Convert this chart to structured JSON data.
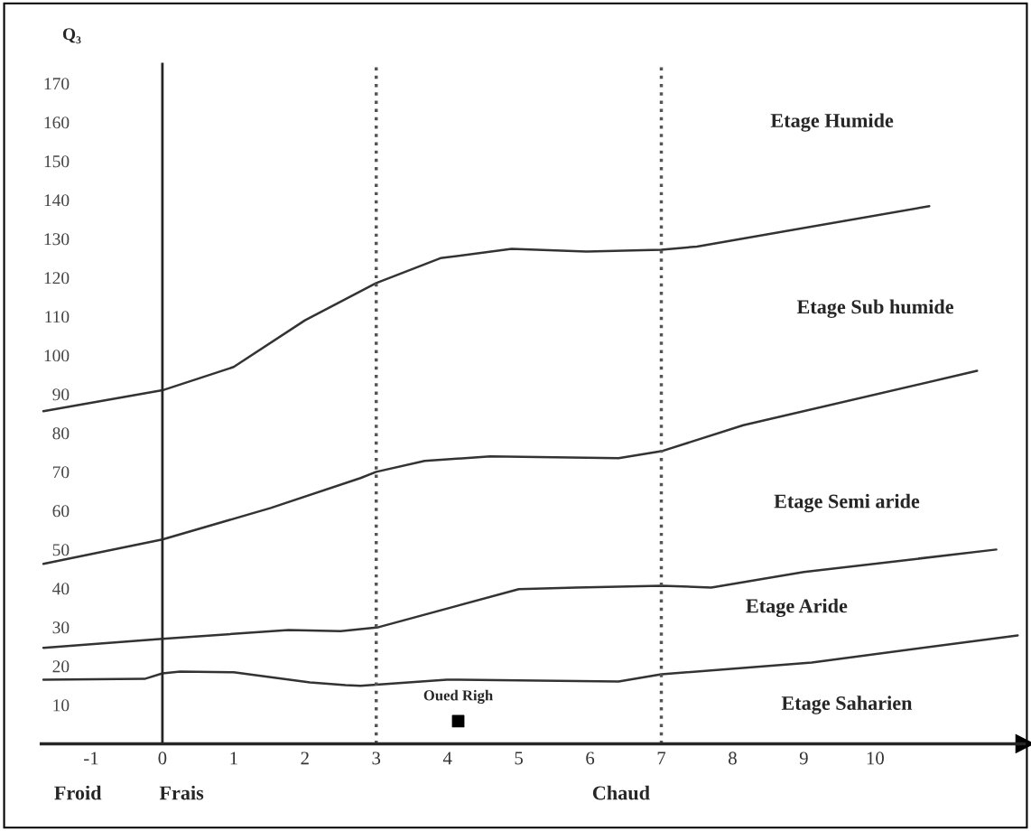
{
  "chart_data": {
    "type": "line",
    "ylabel": "Q₃",
    "xlim": [
      -1.7,
      12.1
    ],
    "ylim": [
      0,
      175
    ],
    "xticks": [
      -1,
      0,
      1,
      2,
      3,
      4,
      5,
      6,
      7,
      8,
      9,
      10
    ],
    "yticks": [
      10,
      20,
      30,
      40,
      50,
      60,
      70,
      80,
      90,
      100,
      110,
      120,
      130,
      140,
      150,
      160,
      170
    ],
    "series": [
      {
        "color": "#333333",
        "x": [
          -1.67,
          0,
          1.0,
          2.0,
          3.0,
          3.9,
          4.9,
          5.95,
          7.0,
          7.5,
          10.76
        ],
        "values": [
          85.6,
          91,
          97,
          109,
          118.6,
          125,
          127.4,
          126.7,
          127.2,
          128,
          138.4
        ]
      },
      {
        "color": "#333333",
        "x": [
          -1.67,
          0,
          1.52,
          2.78,
          3.0,
          3.68,
          4.6,
          6.4,
          7.0,
          8.15,
          11.43
        ],
        "values": [
          46.3,
          52.6,
          60.7,
          68.4,
          70,
          72.8,
          74,
          73.5,
          75.3,
          82,
          96
        ]
      },
      {
        "color": "#333333",
        "x": [
          -1.67,
          0,
          1.77,
          2.5,
          2.78,
          3.03,
          5.0,
          5.8,
          7.0,
          7.7,
          9.0,
          11.7
        ],
        "values": [
          24.7,
          27,
          29.3,
          29,
          29.5,
          30,
          39.8,
          40.2,
          40.7,
          40.2,
          44.2,
          50
        ]
      },
      {
        "color": "#333333",
        "x": [
          -1.67,
          -0.25,
          0,
          0.25,
          1.0,
          2.07,
          2.57,
          2.78,
          3.99,
          6.4,
          7.0,
          9.11,
          12.0
        ],
        "values": [
          16.5,
          16.7,
          18.1,
          18.6,
          18.4,
          15.8,
          15.1,
          14.9,
          16.5,
          16,
          17.9,
          20.9,
          27.9
        ]
      },
      {
        "type": "scatter",
        "name": "Oued Righ",
        "marker": "square",
        "color": "#000000",
        "x": [
          4.15
        ],
        "values": [
          5.8
        ]
      }
    ],
    "ref_lines": [
      {
        "axis": "x",
        "value": 3,
        "line_style": "dotted",
        "color": "#555555"
      },
      {
        "axis": "x",
        "value": 7,
        "line_style": "dotted",
        "color": "#555555"
      }
    ],
    "annotations": [
      "Etage Humide",
      "Etage Sub humide",
      "Etage Semi aride",
      "Etage Aride",
      "Etage Saharien",
      "Froid",
      "Frais",
      "Chaud"
    ]
  }
}
